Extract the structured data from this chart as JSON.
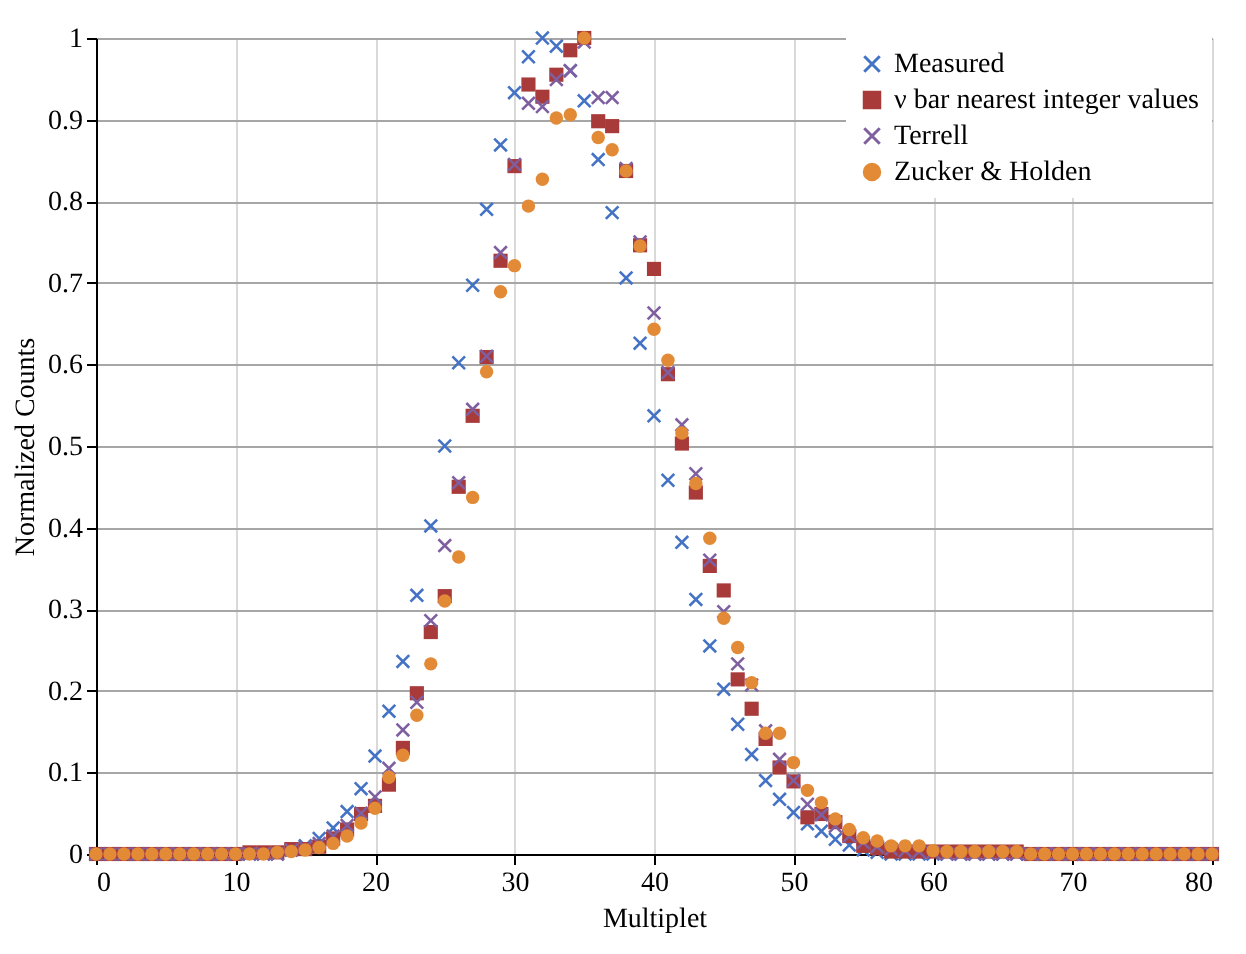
{
  "chart_data": {
    "type": "scatter",
    "xlabel": "Multiplet",
    "ylabel": "Normalized Counts",
    "x": [
      0,
      1,
      2,
      3,
      4,
      5,
      6,
      7,
      8,
      9,
      10,
      11,
      12,
      13,
      14,
      15,
      16,
      17,
      18,
      19,
      20,
      21,
      22,
      23,
      24,
      25,
      26,
      27,
      28,
      29,
      30,
      31,
      32,
      33,
      34,
      35,
      36,
      37,
      38,
      39,
      40,
      41,
      42,
      43,
      44,
      45,
      46,
      47,
      48,
      49,
      50,
      51,
      52,
      53,
      54,
      55,
      56,
      57,
      58,
      59,
      60,
      61,
      62,
      63,
      64,
      65,
      66,
      67,
      68,
      69,
      70,
      71,
      72,
      73,
      74,
      75,
      76,
      77,
      78,
      79,
      80
    ],
    "series": [
      {
        "name": "Measured",
        "color": "#4472c4",
        "marker": "cross",
        "values": [
          0,
          0,
          0,
          0,
          0,
          0,
          0,
          0,
          0,
          0,
          0,
          0,
          0,
          0,
          0.005,
          0.01,
          0.019,
          0.032,
          0.052,
          0.08,
          0.12,
          0.175,
          0.236,
          0.317,
          0.402,
          0.5,
          0.602,
          0.697,
          0.79,
          0.869,
          0.933,
          0.977,
          1.0,
          0.99,
          0.96,
          0.923,
          0.851,
          0.786,
          0.706,
          0.626,
          0.537,
          0.458,
          0.382,
          0.312,
          0.255,
          0.202,
          0.159,
          0.122,
          0.09,
          0.067,
          0.051,
          0.037,
          0.028,
          0.018,
          0.011,
          0.005,
          0.002,
          0,
          0,
          0,
          0,
          0,
          0,
          0,
          0,
          0,
          0,
          0,
          0,
          0,
          0,
          0,
          0,
          0,
          0,
          0,
          0,
          0,
          0,
          0,
          0
        ]
      },
      {
        "name": "ν bar nearest integer values",
        "color": "#a83a3a",
        "marker": "square",
        "values": [
          0,
          0,
          0,
          0,
          0,
          0,
          0,
          0,
          0,
          0,
          0,
          0.002,
          0.002,
          0.002,
          0.006,
          0.006,
          0.009,
          0.019,
          0.03,
          0.049,
          0.059,
          0.085,
          0.13,
          0.197,
          0.272,
          0.316,
          0.45,
          0.537,
          0.609,
          0.727,
          0.843,
          0.943,
          0.928,
          0.955,
          0.985,
          1.0,
          0.898,
          0.892,
          0.837,
          0.746,
          0.717,
          0.588,
          0.503,
          0.443,
          0.353,
          0.323,
          0.214,
          0.178,
          0.141,
          0.106,
          0.089,
          0.045,
          0.049,
          0.039,
          0.022,
          0.01,
          0.007,
          0.003,
          0.003,
          0.003,
          0.003,
          0.003,
          0.003,
          0.003,
          0.003,
          0.003,
          0.003,
          0,
          0,
          0,
          0,
          0,
          0,
          0,
          0,
          0,
          0,
          0,
          0,
          0,
          0
        ]
      },
      {
        "name": "Terrell",
        "color": "#7e5fa0",
        "marker": "cross",
        "values": [
          0,
          0,
          0,
          0,
          0,
          0,
          0,
          0,
          0,
          0,
          0,
          0,
          0,
          0,
          0.005,
          0.008,
          0.013,
          0.022,
          0.035,
          0.05,
          0.07,
          0.105,
          0.152,
          0.186,
          0.286,
          0.378,
          0.455,
          0.545,
          0.61,
          0.737,
          0.845,
          0.92,
          0.916,
          0.949,
          0.96,
          0.995,
          0.927,
          0.927,
          0.84,
          0.75,
          0.663,
          0.59,
          0.526,
          0.466,
          0.36,
          0.297,
          0.233,
          0.207,
          0.151,
          0.116,
          0.09,
          0.061,
          0.048,
          0.034,
          0.022,
          0.014,
          0.009,
          0.006,
          0.004,
          0.003,
          0.002,
          0,
          0,
          0,
          0,
          0,
          0,
          0,
          0,
          0,
          0,
          0,
          0,
          0,
          0,
          0,
          0,
          0,
          0,
          0,
          0
        ]
      },
      {
        "name": "Zucker & Holden",
        "color": "#e28a35",
        "marker": "circle",
        "values": [
          0,
          0,
          0,
          0,
          0,
          0,
          0,
          0,
          0,
          0,
          0,
          0,
          0,
          0.002,
          0.003,
          0.005,
          0.008,
          0.013,
          0.022,
          0.038,
          0.056,
          0.094,
          0.121,
          0.17,
          0.233,
          0.31,
          0.364,
          0.437,
          0.591,
          0.689,
          0.721,
          0.794,
          0.827,
          0.902,
          0.906,
          1.0,
          0.878,
          0.863,
          0.837,
          0.745,
          0.643,
          0.605,
          0.516,
          0.454,
          0.387,
          0.289,
          0.253,
          0.21,
          0.148,
          0.148,
          0.112,
          0.078,
          0.063,
          0.043,
          0.03,
          0.02,
          0.016,
          0.01,
          0.01,
          0.01,
          0.004,
          0.003,
          0.003,
          0.003,
          0.003,
          0.003,
          0.003,
          0,
          0,
          0,
          0,
          0,
          0,
          0,
          0,
          0,
          0,
          0,
          0,
          0,
          0
        ]
      }
    ],
    "xlim": [
      0,
      80
    ],
    "xticks": [
      0,
      10,
      20,
      30,
      40,
      50,
      60,
      70,
      80
    ],
    "ylim": [
      0,
      1
    ],
    "yticks": [
      0,
      0.1,
      0.2,
      0.3,
      0.4,
      0.5,
      0.6,
      0.7,
      0.8,
      0.9,
      1
    ],
    "grid": true,
    "legend": "top right"
  }
}
